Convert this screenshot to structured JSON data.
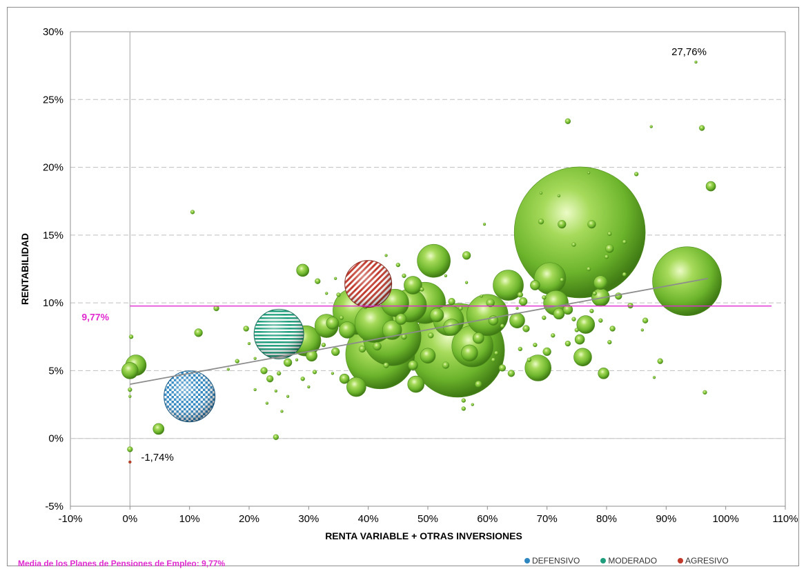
{
  "chart_data": {
    "type": "scatter",
    "subtype": "bubble",
    "title": "",
    "xlabel": "RENTA VARIABLE  + OTRAS INVERSIONES",
    "ylabel": "RENTABILIDAD",
    "xlim": [
      -0.1,
      1.1
    ],
    "ylim": [
      -0.05,
      0.3
    ],
    "x_ticks": [
      -0.1,
      0.0,
      0.1,
      0.2,
      0.3,
      0.4,
      0.5,
      0.6,
      0.7,
      0.8,
      0.9,
      1.0,
      1.1
    ],
    "x_tick_labels": [
      "-10%",
      "0%",
      "10%",
      "20%",
      "30%",
      "40%",
      "50%",
      "60%",
      "70%",
      "80%",
      "90%",
      "100%",
      "110%"
    ],
    "y_ticks": [
      -0.05,
      0.0,
      0.05,
      0.1,
      0.15,
      0.2,
      0.25,
      0.3
    ],
    "y_tick_labels": [
      "-5%",
      "0%",
      "5%",
      "10%",
      "15%",
      "20%",
      "25%",
      "30%"
    ],
    "grid": "horizontal dashed",
    "colors": {
      "plan": "#6bbf2a",
      "defensivo": "#2e86c1",
      "moderado": "#1e9e7c",
      "agresivo": "#c0392b",
      "mean_line": "#e02bd0",
      "trend_line": "#8c8c8c",
      "grid": "#bfbfbf"
    },
    "mean": {
      "value": 0.0977,
      "label": "9,77%"
    },
    "trend_line": {
      "x": [
        0.0,
        0.97
      ],
      "y": [
        0.04,
        0.118
      ]
    },
    "annotations": [
      {
        "text": "27,76%",
        "x": 0.95,
        "y": 0.2776
      },
      {
        "text": "-1,74%",
        "x": 0.0,
        "y": -0.0174
      }
    ],
    "series": [
      {
        "name": "Planes",
        "points": [
          [
            0.755,
            0.152,
            95
          ],
          [
            0.935,
            0.116,
            50
          ],
          [
            0.55,
            0.065,
            68
          ],
          [
            0.42,
            0.062,
            50
          ],
          [
            0.44,
            0.075,
            42
          ],
          [
            0.38,
            0.094,
            34
          ],
          [
            0.495,
            0.1,
            30
          ],
          [
            0.575,
            0.068,
            30
          ],
          [
            0.6,
            0.091,
            30
          ],
          [
            0.535,
            0.087,
            22
          ],
          [
            0.41,
            0.085,
            28
          ],
          [
            0.47,
            0.098,
            24
          ],
          [
            0.295,
            0.072,
            22
          ],
          [
            0.705,
            0.118,
            23
          ],
          [
            0.635,
            0.113,
            22
          ],
          [
            0.51,
            0.131,
            24
          ],
          [
            0.685,
            0.052,
            19
          ],
          [
            0.715,
            0.1,
            18
          ],
          [
            0.445,
            0.1,
            20
          ],
          [
            0.33,
            0.083,
            17
          ],
          [
            0.475,
            0.113,
            13
          ],
          [
            0.44,
            0.08,
            14
          ],
          [
            0.365,
            0.08,
            12
          ],
          [
            0.54,
            0.082,
            12
          ],
          [
            0.5,
            0.061,
            11
          ],
          [
            0.65,
            0.087,
            11
          ],
          [
            0.79,
            0.104,
            13
          ],
          [
            0.76,
            0.06,
            13
          ],
          [
            0.765,
            0.084,
            13
          ],
          [
            0.79,
            0.115,
            10
          ],
          [
            0.515,
            0.091,
            10
          ],
          [
            0.38,
            0.038,
            14
          ],
          [
            0.48,
            0.04,
            12
          ],
          [
            0.01,
            0.054,
            15
          ],
          [
            0.0,
            0.05,
            12
          ],
          [
            0.048,
            0.007,
            8
          ],
          [
            0.29,
            0.124,
            9
          ],
          [
            0.57,
            0.063,
            12
          ],
          [
            0.585,
            0.074,
            8
          ],
          [
            0.34,
            0.085,
            9
          ],
          [
            0.305,
            0.061,
            8
          ],
          [
            0.975,
            0.186,
            7
          ],
          [
            0.795,
            0.048,
            8
          ],
          [
            0.68,
            0.113,
            7
          ],
          [
            0.61,
            0.087,
            7
          ],
          [
            0.72,
            0.092,
            8
          ],
          [
            0.455,
            0.088,
            8
          ],
          [
            0.475,
            0.054,
            7
          ],
          [
            0.565,
            0.135,
            6
          ],
          [
            0.605,
            0.1,
            6
          ],
          [
            0.345,
            0.064,
            6
          ],
          [
            0.415,
            0.068,
            6
          ],
          [
            0.66,
            0.101,
            6
          ],
          [
            0.7,
            0.064,
            6
          ],
          [
            0.735,
            0.095,
            7
          ],
          [
            0.755,
            0.073,
            7
          ],
          [
            0.805,
            0.14,
            6
          ],
          [
            0.82,
            0.105,
            5
          ],
          [
            0.36,
            0.044,
            7
          ],
          [
            0.115,
            0.078,
            6
          ],
          [
            0.735,
            0.234,
            4
          ],
          [
            0.96,
            0.229,
            4
          ],
          [
            0.265,
            0.056,
            6
          ],
          [
            0.235,
            0.044,
            5
          ],
          [
            0.225,
            0.05,
            5
          ],
          [
            0.315,
            0.116,
            4
          ],
          [
            0.625,
            0.052,
            5
          ],
          [
            0.665,
            0.081,
            5
          ],
          [
            0.775,
            0.158,
            6
          ],
          [
            0.725,
            0.158,
            6
          ],
          [
            0.54,
            0.101,
            5
          ],
          [
            0.585,
            0.04,
            5
          ],
          [
            0.64,
            0.048,
            5
          ],
          [
            0.53,
            0.054,
            5
          ],
          [
            0.43,
            0.054,
            4
          ],
          [
            0.39,
            0.066,
            5
          ],
          [
            0.46,
            0.075,
            4
          ],
          [
            0.505,
            0.076,
            4
          ],
          [
            0.655,
            0.106,
            4
          ],
          [
            0.69,
            0.16,
            4
          ],
          [
            0.735,
            0.07,
            4
          ],
          [
            0.81,
            0.081,
            4
          ],
          [
            0.84,
            0.098,
            4
          ],
          [
            0.865,
            0.087,
            4
          ],
          [
            0.89,
            0.057,
            4
          ],
          [
            0.195,
            0.081,
            4
          ],
          [
            0.145,
            0.096,
            4
          ],
          [
            0.105,
            0.167,
            3
          ],
          [
            0.245,
            0.001,
            4
          ],
          [
            0.0,
            -0.008,
            4
          ],
          [
            0.002,
            0.075,
            3
          ],
          [
            0.0,
            0.036,
            3
          ],
          [
            0.0,
            0.031,
            2
          ],
          [
            0.25,
            0.048,
            3
          ],
          [
            0.27,
            0.067,
            3
          ],
          [
            0.29,
            0.044,
            3
          ],
          [
            0.21,
            0.036,
            2
          ],
          [
            0.18,
            0.057,
            3
          ],
          [
            0.165,
            0.051,
            2
          ],
          [
            0.23,
            0.026,
            2
          ],
          [
            0.255,
            0.02,
            2
          ],
          [
            0.31,
            0.049,
            3
          ],
          [
            0.325,
            0.069,
            3
          ],
          [
            0.35,
            0.106,
            3
          ],
          [
            0.37,
            0.11,
            3
          ],
          [
            0.39,
            0.123,
            2
          ],
          [
            0.41,
            0.126,
            3
          ],
          [
            0.45,
            0.128,
            3
          ],
          [
            0.56,
            0.028,
            3
          ],
          [
            0.56,
            0.022,
            3
          ],
          [
            0.575,
            0.025,
            2
          ],
          [
            0.61,
            0.058,
            3
          ],
          [
            0.615,
            0.063,
            3
          ],
          [
            0.67,
            0.058,
            3
          ],
          [
            0.68,
            0.069,
            3
          ],
          [
            0.695,
            0.089,
            3
          ],
          [
            0.71,
            0.076,
            3
          ],
          [
            0.745,
            0.088,
            3
          ],
          [
            0.75,
            0.08,
            3
          ],
          [
            0.775,
            0.094,
            3
          ],
          [
            0.78,
            0.107,
            3
          ],
          [
            0.8,
            0.134,
            3
          ],
          [
            0.805,
            0.151,
            3
          ],
          [
            0.83,
            0.145,
            3
          ],
          [
            0.85,
            0.195,
            3
          ],
          [
            0.83,
            0.121,
            3
          ],
          [
            0.805,
            0.071,
            3
          ],
          [
            0.79,
            0.087,
            3
          ],
          [
            0.965,
            0.034,
            3
          ],
          [
            0.595,
            0.158,
            2
          ],
          [
            0.555,
            0.096,
            3
          ],
          [
            0.49,
            0.11,
            3
          ],
          [
            0.46,
            0.12,
            3
          ],
          [
            0.43,
            0.113,
            3
          ],
          [
            0.395,
            0.097,
            3
          ],
          [
            0.355,
            0.089,
            3
          ],
          [
            0.625,
            0.083,
            3
          ],
          [
            0.655,
            0.066,
            3
          ],
          [
            0.695,
            0.104,
            3
          ],
          [
            0.725,
            0.117,
            3
          ],
          [
            0.745,
            0.143,
            3
          ],
          [
            0.77,
            0.125,
            3
          ],
          [
            0.86,
            0.08,
            2
          ],
          [
            0.88,
            0.045,
            2
          ],
          [
            0.2,
            0.07,
            2
          ],
          [
            0.21,
            0.059,
            2
          ],
          [
            0.245,
            0.035,
            2
          ],
          [
            0.265,
            0.031,
            2
          ],
          [
            0.28,
            0.058,
            2
          ],
          [
            0.3,
            0.038,
            2
          ],
          [
            0.34,
            0.048,
            2
          ],
          [
            0.33,
            0.107,
            2
          ],
          [
            0.345,
            0.118,
            2
          ],
          [
            0.43,
            0.135,
            2
          ],
          [
            0.53,
            0.12,
            2
          ],
          [
            0.565,
            0.115,
            2
          ],
          [
            0.59,
            0.105,
            2
          ],
          [
            0.65,
            0.096,
            2
          ],
          [
            0.69,
            0.181,
            2
          ],
          [
            0.72,
            0.179,
            2
          ],
          [
            0.77,
            0.196,
            2
          ],
          [
            0.875,
            0.23,
            2
          ],
          [
            0.95,
            0.2776,
            2
          ],
          [
            0.0,
            -0.0174,
            2
          ]
        ]
      },
      {
        "name": "DEFENSIVO",
        "points": [
          [
            0.1,
            0.031,
            37
          ]
        ]
      },
      {
        "name": "MODERADO",
        "points": [
          [
            0.25,
            0.077,
            36
          ]
        ]
      },
      {
        "name": "AGRESIVO",
        "points": [
          [
            0.4,
            0.114,
            34
          ]
        ]
      }
    ],
    "legend": {
      "position": "bottom-right",
      "items": [
        {
          "label": "DEFENSIVO",
          "color": "#2e86c1"
        },
        {
          "label": "MODERADO",
          "color": "#1e9e7c"
        },
        {
          "label": "AGRESIVO",
          "color": "#c0392b"
        }
      ]
    },
    "footnote": "Media de los Planes de Pensiones de Empleo: 9,77%"
  }
}
